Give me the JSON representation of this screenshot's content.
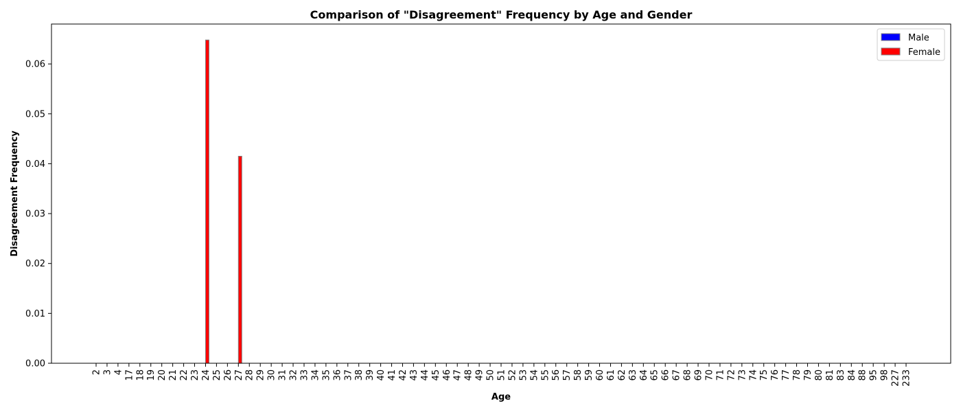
{
  "chart_data": {
    "type": "bar",
    "title": "Comparison of \"Disagreement\" Frequency by Age and Gender",
    "xlabel": "Age",
    "ylabel": "Disagreement Frequency",
    "ylim": [
      0,
      0.068
    ],
    "yticks": [
      "0.00",
      "0.01",
      "0.02",
      "0.03",
      "0.04",
      "0.05",
      "0.06"
    ],
    "ytick_values": [
      0,
      0.01,
      0.02,
      0.03,
      0.04,
      0.05,
      0.06
    ],
    "grid": false,
    "legend_position": "top-right",
    "categories": [
      "2",
      "3",
      "4",
      "17",
      "18",
      "19",
      "20",
      "21",
      "22",
      "23",
      "24",
      "25",
      "26",
      "27",
      "28",
      "29",
      "30",
      "31",
      "32",
      "33",
      "34",
      "35",
      "36",
      "37",
      "38",
      "39",
      "40",
      "41",
      "42",
      "43",
      "44",
      "45",
      "46",
      "47",
      "48",
      "49",
      "50",
      "51",
      "52",
      "53",
      "54",
      "55",
      "56",
      "57",
      "58",
      "59",
      "60",
      "61",
      "62",
      "63",
      "64",
      "65",
      "66",
      "67",
      "68",
      "69",
      "70",
      "71",
      "72",
      "73",
      "74",
      "75",
      "76",
      "77",
      "78",
      "79",
      "80",
      "81",
      "83",
      "84",
      "88",
      "95",
      "98",
      "227",
      "233"
    ],
    "series": [
      {
        "name": "Male",
        "color": "#0000ff",
        "values": [
          0,
          0,
          0,
          0,
          0,
          0,
          0,
          0,
          0,
          0,
          0,
          0,
          0,
          0,
          0,
          0,
          0,
          0,
          0,
          0,
          0,
          0,
          0,
          0,
          0,
          0,
          0,
          0,
          0,
          0,
          0,
          0,
          0,
          0,
          0,
          0,
          0,
          0,
          0,
          0,
          0,
          0,
          0,
          0,
          0,
          0,
          0,
          0,
          0,
          0,
          0,
          0,
          0,
          0,
          0,
          0,
          0,
          0,
          0,
          0,
          0,
          0,
          0,
          0,
          0,
          0,
          0,
          0,
          0,
          0,
          0,
          0,
          0,
          0,
          0
        ]
      },
      {
        "name": "Female",
        "color": "#ff0000",
        "values": [
          0,
          0,
          0,
          0,
          0,
          0,
          0,
          0,
          0,
          0,
          0.0648,
          0,
          0,
          0.0415,
          0,
          0,
          0,
          0,
          0,
          0,
          0,
          0,
          0,
          0,
          0,
          0,
          0,
          0,
          0,
          0,
          0,
          0,
          0,
          0,
          0,
          0,
          0,
          0,
          0,
          0,
          0,
          0,
          0,
          0,
          0,
          0,
          0,
          0,
          0,
          0,
          0,
          0,
          0,
          0,
          0,
          0,
          0,
          0,
          0,
          0,
          0,
          0,
          0,
          0,
          0,
          0,
          0,
          0,
          0,
          0,
          0,
          0,
          0,
          0,
          0
        ]
      }
    ]
  }
}
